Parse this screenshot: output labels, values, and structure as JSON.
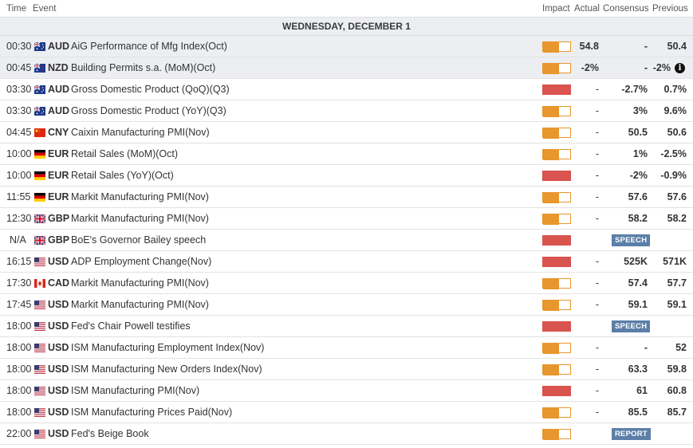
{
  "header": {
    "time": "Time",
    "event": "Event",
    "impact": "Impact",
    "actual": "Actual",
    "consensus": "Consensus",
    "previous": "Previous"
  },
  "day": "WEDNESDAY, DECEMBER 1",
  "colors": {
    "impact_medium": "#e8962e",
    "impact_high": "#d9534f",
    "badge": "#5b7fa8",
    "past_row": "#eceef1"
  },
  "rows": [
    {
      "time": "00:30",
      "flag": "au-flag-icon",
      "currency": "AUD",
      "event": "AiG Performance of Mfg Index(Oct)",
      "impact": "medium",
      "actual": "54.8",
      "consensus": "-",
      "previous": "50.4",
      "past": true
    },
    {
      "time": "00:45",
      "flag": "nz-flag-icon",
      "currency": "NZD",
      "event": "Building Permits s.a. (MoM)(Oct)",
      "impact": "medium",
      "actual": "-2%",
      "consensus": "-",
      "previous": "-2%",
      "past": true,
      "info": "i"
    },
    {
      "time": "03:30",
      "flag": "au-flag-icon",
      "currency": "AUD",
      "event": "Gross Domestic Product (QoQ)(Q3)",
      "impact": "high",
      "actual": "-",
      "consensus": "-2.7%",
      "previous": "0.7%"
    },
    {
      "time": "03:30",
      "flag": "au-flag-icon",
      "currency": "AUD",
      "event": "Gross Domestic Product (YoY)(Q3)",
      "impact": "medium",
      "actual": "-",
      "consensus": "3%",
      "previous": "9.6%"
    },
    {
      "time": "04:45",
      "flag": "cn-flag-icon",
      "currency": "CNY",
      "event": "Caixin Manufacturing PMI(Nov)",
      "impact": "medium",
      "actual": "-",
      "consensus": "50.5",
      "previous": "50.6"
    },
    {
      "time": "10:00",
      "flag": "de-flag-icon",
      "currency": "EUR",
      "event": "Retail Sales (MoM)(Oct)",
      "impact": "medium",
      "actual": "-",
      "consensus": "1%",
      "previous": "-2.5%"
    },
    {
      "time": "10:00",
      "flag": "de-flag-icon",
      "currency": "EUR",
      "event": "Retail Sales (YoY)(Oct)",
      "impact": "high",
      "actual": "-",
      "consensus": "-2%",
      "previous": "-0.9%"
    },
    {
      "time": "11:55",
      "flag": "de-flag-icon",
      "currency": "EUR",
      "event": "Markit Manufacturing PMI(Nov)",
      "impact": "medium",
      "actual": "-",
      "consensus": "57.6",
      "previous": "57.6"
    },
    {
      "time": "12:30",
      "flag": "gb-flag-icon",
      "currency": "GBP",
      "event": "Markit Manufacturing PMI(Nov)",
      "impact": "medium",
      "actual": "-",
      "consensus": "58.2",
      "previous": "58.2"
    },
    {
      "time": "N/A",
      "flag": "gb-flag-icon",
      "currency": "GBP",
      "event": "BoE's Governor Bailey speech",
      "impact": "high",
      "badge": "SPEECH"
    },
    {
      "time": "16:15",
      "flag": "us-flag-icon",
      "currency": "USD",
      "event": "ADP Employment Change(Nov)",
      "impact": "high",
      "actual": "-",
      "consensus": "525K",
      "previous": "571K"
    },
    {
      "time": "17:30",
      "flag": "ca-flag-icon",
      "currency": "CAD",
      "event": "Markit Manufacturing PMI(Nov)",
      "impact": "medium",
      "actual": "-",
      "consensus": "57.4",
      "previous": "57.7"
    },
    {
      "time": "17:45",
      "flag": "us-flag-icon",
      "currency": "USD",
      "event": "Markit Manufacturing PMI(Nov)",
      "impact": "medium",
      "actual": "-",
      "consensus": "59.1",
      "previous": "59.1"
    },
    {
      "time": "18:00",
      "flag": "us-flag-icon",
      "currency": "USD",
      "event": "Fed's Chair Powell testifies",
      "impact": "high",
      "badge": "SPEECH"
    },
    {
      "time": "18:00",
      "flag": "us-flag-icon",
      "currency": "USD",
      "event": "ISM Manufacturing Employment Index(Nov)",
      "impact": "medium",
      "actual": "-",
      "consensus": "-",
      "previous": "52"
    },
    {
      "time": "18:00",
      "flag": "us-flag-icon",
      "currency": "USD",
      "event": "ISM Manufacturing New Orders Index(Nov)",
      "impact": "medium",
      "actual": "-",
      "consensus": "63.3",
      "previous": "59.8"
    },
    {
      "time": "18:00",
      "flag": "us-flag-icon",
      "currency": "USD",
      "event": "ISM Manufacturing PMI(Nov)",
      "impact": "high",
      "actual": "-",
      "consensus": "61",
      "previous": "60.8"
    },
    {
      "time": "18:00",
      "flag": "us-flag-icon",
      "currency": "USD",
      "event": "ISM Manufacturing Prices Paid(Nov)",
      "impact": "medium",
      "actual": "-",
      "consensus": "85.5",
      "previous": "85.7"
    },
    {
      "time": "22:00",
      "flag": "us-flag-icon",
      "currency": "USD",
      "event": "Fed's Beige Book",
      "impact": "medium",
      "badge": "REPORT"
    }
  ]
}
